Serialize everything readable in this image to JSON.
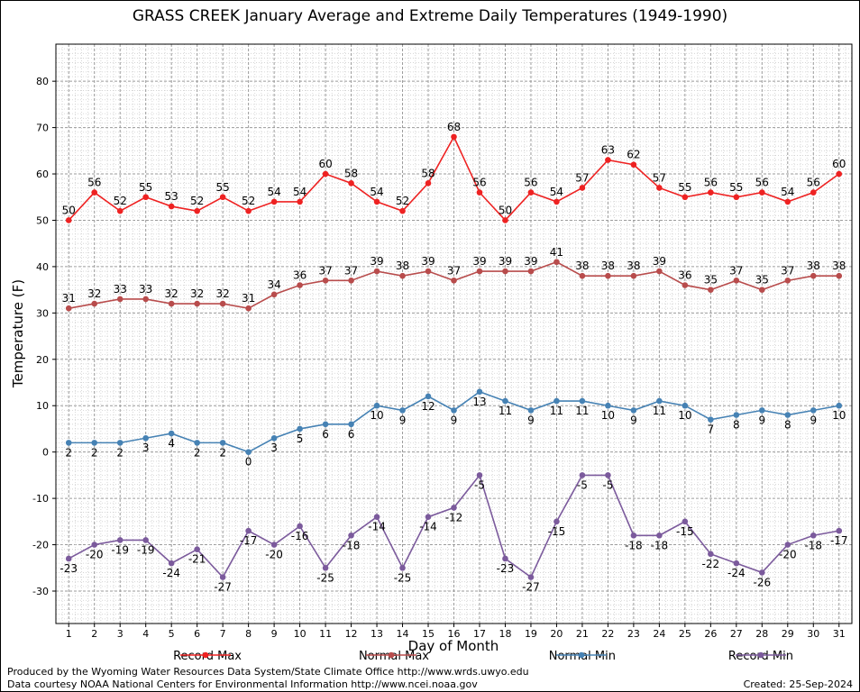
{
  "title": "GRASS CREEK January Average and Extreme Daily Temperatures (1949-1990)",
  "footer": {
    "line1": "Produced by the Wyoming Water Resources Data System/State Climate Office http://www.wrds.uwyo.edu",
    "line2": "Data courtesy NOAA National Centers for Environmental Information http://www.ncei.noaa.gov",
    "created": "Created:  25-Sep-2024"
  },
  "chart_data": {
    "type": "line",
    "title": "GRASS CREEK January Average and Extreme Daily Temperatures (1949-1990)",
    "xlabel": "Day of Month",
    "ylabel": "Temperature (F)",
    "ylim": [
      -37,
      88
    ],
    "xlim": [
      0.5,
      31.5
    ],
    "yticks": [
      -30,
      -20,
      -10,
      0,
      10,
      20,
      30,
      40,
      50,
      60,
      70,
      80
    ],
    "grid": true,
    "legend_position": "bottom",
    "x": [
      1,
      2,
      3,
      4,
      5,
      6,
      7,
      8,
      9,
      10,
      11,
      12,
      13,
      14,
      15,
      16,
      17,
      18,
      19,
      20,
      21,
      22,
      23,
      24,
      25,
      26,
      27,
      28,
      29,
      30,
      31
    ],
    "series": [
      {
        "name": "Record Max",
        "color": "#ee2222",
        "label_position": "above",
        "values": [
          50,
          56,
          52,
          55,
          53,
          52,
          55,
          52,
          54,
          54,
          60,
          58,
          54,
          52,
          58,
          68,
          56,
          50,
          56,
          54,
          57,
          63,
          62,
          57,
          55,
          56,
          55,
          56,
          54,
          56,
          60
        ]
      },
      {
        "name": "Normal Max",
        "color": "#b84c4c",
        "label_position": "above",
        "values": [
          31,
          32,
          33,
          33,
          32,
          32,
          32,
          31,
          34,
          36,
          37,
          37,
          39,
          38,
          39,
          37,
          39,
          39,
          39,
          41,
          38,
          38,
          38,
          39,
          36,
          35,
          37,
          35,
          37,
          38,
          38
        ]
      },
      {
        "name": "Normal Min",
        "color": "#4682b4",
        "label_position": "below",
        "values": [
          2,
          2,
          2,
          3,
          4,
          2,
          2,
          0,
          3,
          5,
          6,
          6,
          10,
          9,
          12,
          9,
          13,
          11,
          9,
          11,
          11,
          10,
          9,
          11,
          10,
          7,
          8,
          9,
          8,
          9,
          10
        ]
      },
      {
        "name": "Record Min",
        "color": "#7b5a9c",
        "label_position": "below",
        "values": [
          -23,
          -20,
          -19,
          -19,
          -24,
          -21,
          -27,
          -17,
          -20,
          -16,
          -25,
          -18,
          -14,
          -25,
          -14,
          -12,
          -5,
          -23,
          -27,
          -15,
          -5,
          -5,
          -18,
          -18,
          -15,
          -22,
          -24,
          -26,
          -20,
          -18,
          -17
        ]
      }
    ]
  }
}
